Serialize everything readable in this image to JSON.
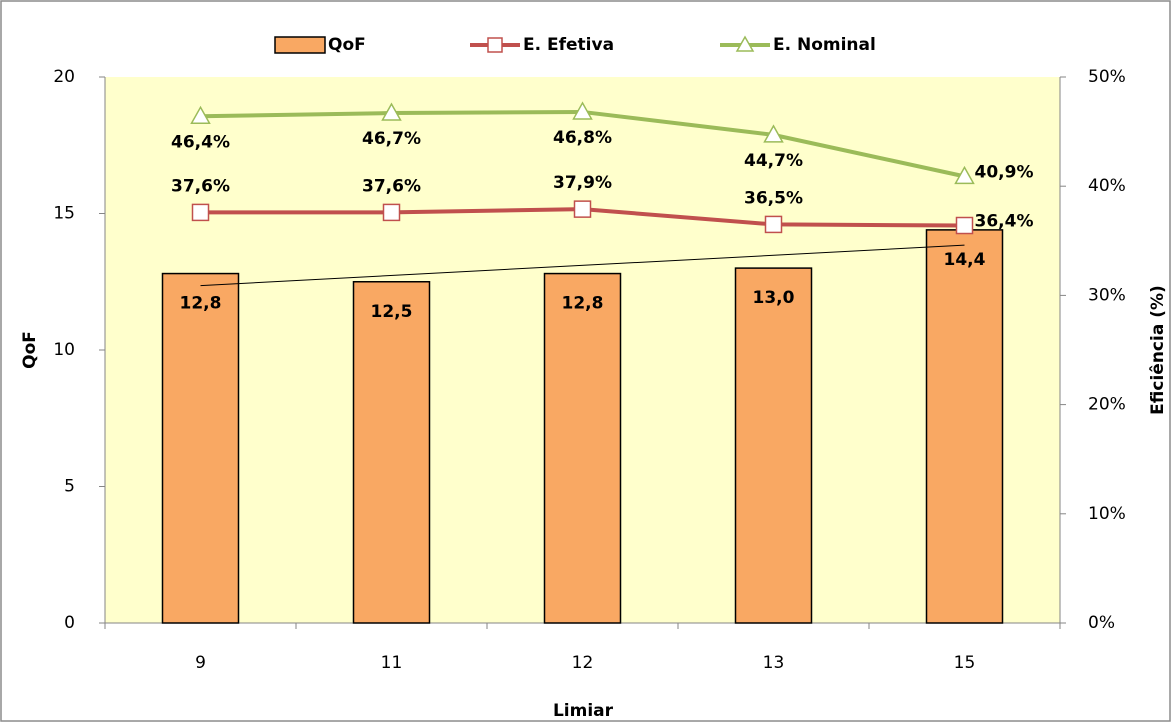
{
  "chart_data": {
    "type": "bar_line",
    "categories": [
      "9",
      "11",
      "12",
      "13",
      "15"
    ],
    "xlabel": "Limiar",
    "ylabel": "QoF",
    "y2label": "Eficiência (%)",
    "ylim": [
      0,
      20
    ],
    "yticks": [
      0,
      5,
      10,
      15,
      20
    ],
    "y2lim": [
      0,
      50
    ],
    "y2ticks": [
      {
        "value": 0,
        "label": "0%"
      },
      {
        "value": 10,
        "label": "10%"
      },
      {
        "value": 20,
        "label": "20%"
      },
      {
        "value": 30,
        "label": "30%"
      },
      {
        "value": 40,
        "label": "40%"
      },
      {
        "value": 50,
        "label": "50%"
      }
    ],
    "legend": "top",
    "trendline": true,
    "series": [
      {
        "name": "QoF",
        "type": "bar",
        "color": "#f9a863",
        "values": [
          12.8,
          12.5,
          12.8,
          13.0,
          14.4
        ],
        "value_labels": [
          "12,8",
          "12,5",
          "12,8",
          "13,0",
          "14,4"
        ]
      },
      {
        "name": "E. Efetiva",
        "type": "line",
        "marker": "square",
        "axis": "y2",
        "color": "#c0504d",
        "values": [
          37.6,
          37.6,
          37.9,
          36.5,
          36.4
        ],
        "value_labels": [
          "37,6%",
          "37,6%",
          "37,9%",
          "36,5%",
          "36,4%"
        ]
      },
      {
        "name": "E. Nominal",
        "type": "line",
        "marker": "triangle",
        "axis": "y2",
        "color": "#9bbb59",
        "values": [
          46.4,
          46.7,
          46.8,
          44.7,
          40.9
        ],
        "value_labels": [
          "46,4%",
          "46,7%",
          "46,8%",
          "44,7%",
          "40,9%"
        ]
      }
    ]
  }
}
